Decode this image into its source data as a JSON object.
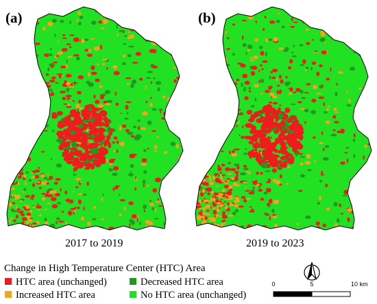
{
  "panels": [
    {
      "label": "(a)",
      "period": "2017 to 2019"
    },
    {
      "label": "(b)",
      "period": "2019 to 2023"
    }
  ],
  "legend": {
    "title": "Change in High Temperature Center (HTC) Area",
    "items": [
      {
        "label": "HTC area (unchanged)",
        "color": "#ee1c1c"
      },
      {
        "label": "Decreased HTC area",
        "color": "#1f9a1f"
      },
      {
        "label": "Increased HTC area",
        "color": "#f2a51a"
      },
      {
        "label": "No HTC area (unchanged)",
        "color": "#22e022"
      }
    ]
  },
  "scale": {
    "tick_0": "0",
    "tick_5": "5",
    "tick_10": "10 km"
  },
  "colors": {
    "outline": "#000000",
    "background": "#ffffff"
  }
}
